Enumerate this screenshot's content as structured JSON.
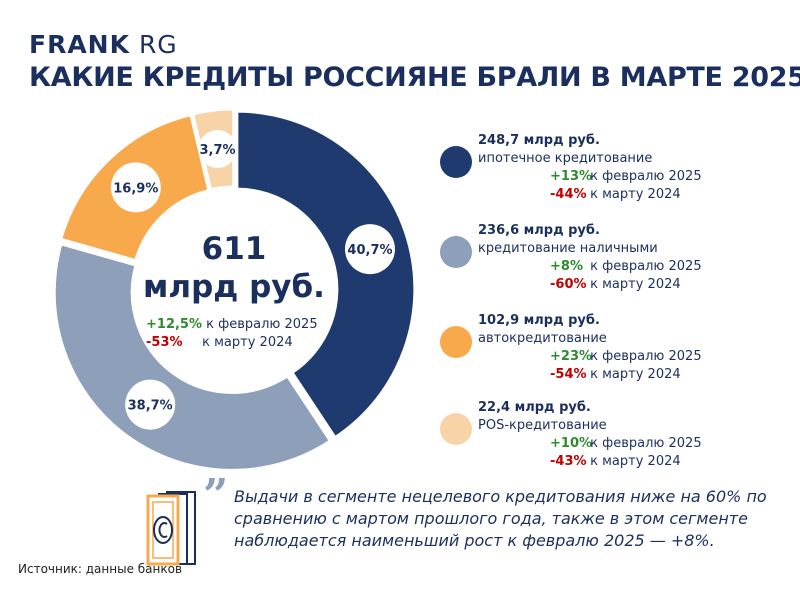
{
  "brand": {
    "bold": "FRANK",
    "light": "RG"
  },
  "title": "КАКИЕ КРЕДИТЫ РОССИЯНЕ БРАЛИ В МАРТЕ 2025",
  "center": {
    "total": "611",
    "unit": "млрд руб.",
    "chg1_value": "+12,5%",
    "chg1_label": "к февралю 2025",
    "chg2_value": "-53%",
    "chg2_label": "к марту 2024"
  },
  "chart_data": {
    "type": "pie",
    "donut": true,
    "categories": [
      "ипотечное кредитование",
      "кредитование наличными",
      "автокредитование",
      "POS-кредитование"
    ],
    "values": [
      40.7,
      38.7,
      16.9,
      3.7
    ],
    "labels": [
      "40,7%",
      "38,7%",
      "16,9%",
      "3,7%"
    ],
    "colors": [
      "#1e3a6e",
      "#8e9fba",
      "#f7a94b",
      "#f9d3a8"
    ]
  },
  "legend": [
    {
      "amount": "248,7 млрд руб.",
      "name": "ипотечное кредитование",
      "m_value": "+13%",
      "m_label": "к февралю 2025",
      "y_value": "-44%",
      "y_label": "к марту 2024"
    },
    {
      "amount": "236,6 млрд руб.",
      "name": "кредитование наличными",
      "m_value": "+8%",
      "m_label": "к февралю 2025",
      "y_value": "-60%",
      "y_label": "к марту 2024"
    },
    {
      "amount": "102,9 млрд руб.",
      "name": "автокредитование",
      "m_value": "+23%",
      "m_label": "к февралю 2025",
      "y_value": "-54%",
      "y_label": "к марту 2024"
    },
    {
      "amount": "22,4 млрд руб.",
      "name": "POS-кредитование",
      "m_value": "+10%",
      "m_label": "к февралю 2025",
      "y_value": "-43%",
      "y_label": "к марту 2024"
    }
  ],
  "quote": "Выдачи в сегменте нецелевого кредитования ниже на 60% по сравнению с мартом прошлого года, также в этом сегменте наблюдается наименьший рост к февралю 2025 — +8%.",
  "source": "Источник: данные банков"
}
